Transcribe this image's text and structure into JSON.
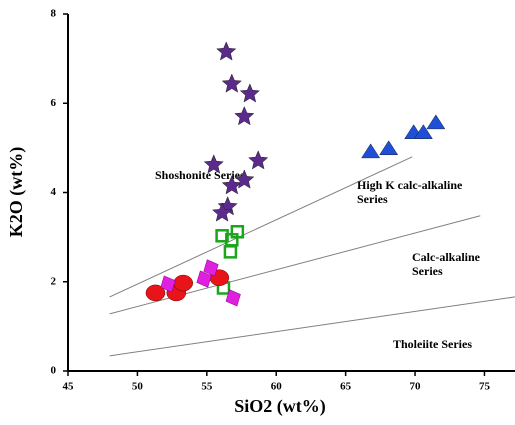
{
  "chart_data": {
    "type": "scatter",
    "x_label": "SiO2 (wt%)",
    "y_label": "K2O (wt%)",
    "xlim": [
      45,
      77.2
    ],
    "ylim": [
      0,
      8
    ],
    "xticks": [
      45,
      50,
      55,
      60,
      65,
      70,
      75
    ],
    "yticks": [
      0,
      2,
      4,
      6,
      8
    ],
    "boundaries": [
      {
        "color": "#808080",
        "x": [
          48,
          69.8
        ],
        "values": [
          1.66,
          4.8
        ]
      },
      {
        "color": "#808080",
        "x": [
          48,
          74.7
        ],
        "values": [
          1.28,
          3.48
        ]
      },
      {
        "color": "#808080",
        "x": [
          48,
          77.2
        ],
        "values": [
          0.34,
          1.66
        ]
      }
    ],
    "annotations": [
      "Shoshonite Series",
      "High K calc-alkaline",
      "Series",
      "Calc-alkaline",
      "Series",
      "Tholeiite Series"
    ],
    "series": [
      {
        "marker": "star",
        "color": "#5b2a8c",
        "x": [
          56.4,
          56.8,
          58.1,
          57.7,
          55.5,
          58.7,
          56.8,
          57.7,
          56.5,
          56.1
        ],
        "values": [
          7.15,
          6.43,
          6.21,
          5.7,
          4.62,
          4.71,
          4.15,
          4.28,
          3.68,
          3.54
        ]
      },
      {
        "marker": "triangle",
        "color": "#1f4fd8",
        "x": [
          66.8,
          68.1,
          69.9,
          70.6,
          71.5
        ],
        "values": [
          4.91,
          4.98,
          5.34,
          5.34,
          5.56
        ]
      },
      {
        "marker": "square",
        "color": "#1aa51a",
        "x": [
          56.1,
          57.2,
          56.8,
          56.7,
          56.2
        ],
        "values": [
          3.03,
          3.12,
          2.94,
          2.67,
          1.86
        ]
      },
      {
        "marker": "circle",
        "color": "#e8141a",
        "x": [
          51.3,
          52.8,
          53.3,
          55.9
        ],
        "values": [
          1.75,
          1.75,
          1.97,
          2.09
        ]
      },
      {
        "marker": "diamond",
        "color": "#e020e0",
        "x": [
          52.2,
          54.8,
          55.3,
          56.9
        ],
        "values": [
          1.95,
          2.06,
          2.31,
          1.64
        ]
      }
    ]
  }
}
